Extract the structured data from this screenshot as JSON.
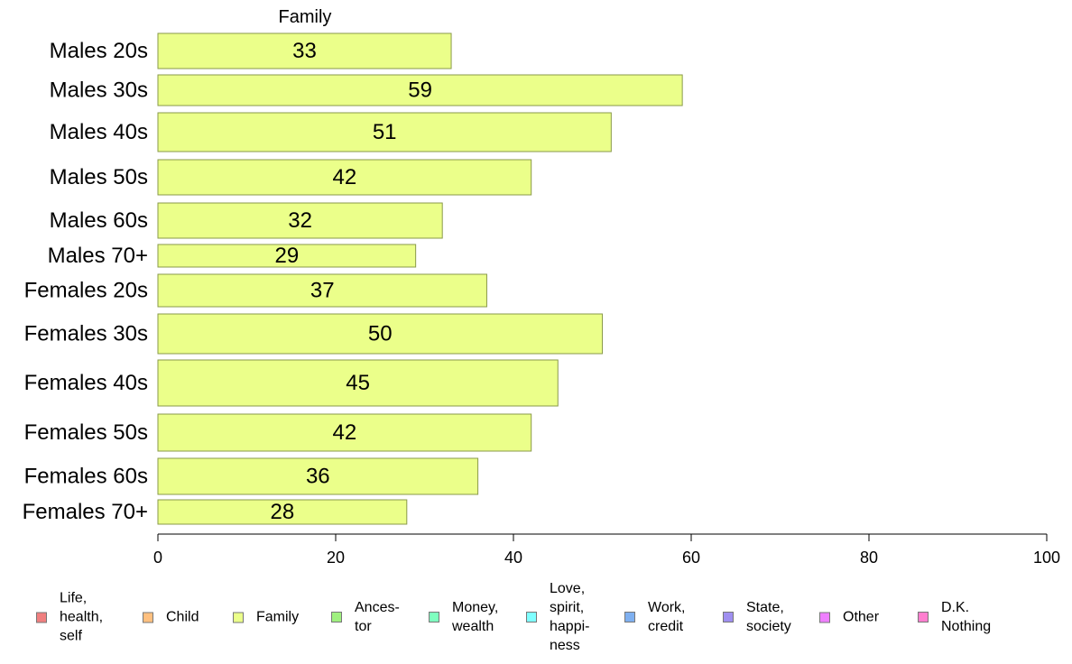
{
  "chart_data": {
    "type": "bar",
    "orientation": "horizontal",
    "title": "Family",
    "categories": [
      "Males 20s",
      "Males 30s",
      "Males 40s",
      "Males 50s",
      "Males 60s",
      "Males 70+",
      "Females 20s",
      "Females 30s",
      "Females 40s",
      "Females 50s",
      "Females 60s",
      "Females 70+"
    ],
    "values": [
      33,
      59,
      51,
      42,
      32,
      29,
      37,
      50,
      45,
      42,
      36,
      28
    ],
    "value_labels": [
      "33",
      "59",
      "51",
      "42",
      "32",
      "29",
      "37",
      "50",
      "45",
      "42",
      "36",
      "28"
    ],
    "xlim": [
      0,
      100
    ],
    "xticks": [
      0,
      20,
      40,
      60,
      80,
      100
    ],
    "xtick_labels": [
      "0",
      "20",
      "40",
      "60",
      "80",
      "100"
    ],
    "bar_color": "#ebff8a",
    "bar_edge_color": "#8a9a4a",
    "grid": false,
    "legend_placement": "bottom",
    "legend": [
      {
        "label": "Life,\nhealth,\nself",
        "color": "#f07f7f"
      },
      {
        "label": "Child",
        "color": "#ffc07f"
      },
      {
        "label": "Family",
        "color": "#ebff8a"
      },
      {
        "label": "Ances-\ntor",
        "color": "#9ff07f"
      },
      {
        "label": "Money,\nwealth",
        "color": "#7fffbf"
      },
      {
        "label": "Love,\nspirit,\nhappi-\nness",
        "color": "#7fffff"
      },
      {
        "label": "Work,\ncredit",
        "color": "#7fb0f0"
      },
      {
        "label": "State,\nsociety",
        "color": "#9f8ff0"
      },
      {
        "label": "Other",
        "color": "#ef7fff"
      },
      {
        "label": "D.K.\nNothing",
        "color": "#ff7fcf"
      }
    ]
  }
}
